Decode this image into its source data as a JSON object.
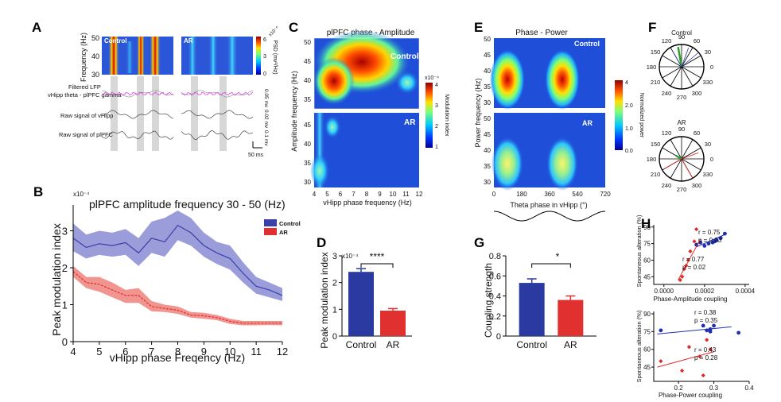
{
  "panels": {
    "A": {
      "label": "A",
      "control_label": "Control",
      "ar_label": "AR",
      "ylabel": "Frequency (Hz)",
      "yticks": [
        "50",
        "40",
        "30"
      ],
      "colorbar_label": "PSD (mv²/Hz)",
      "colorbar_exp": "x10⁻⁶",
      "colorbar_ticks": [
        "6",
        "3",
        "0"
      ],
      "row_filtered_1": "Filtered LFP",
      "row_filtered_2": "vHipp theta - plPFC gamma",
      "row_raw_vhipp": "Raw signal of vHipp",
      "row_raw_plpfc": "Raw signal of plPFC",
      "scale_1": "0.05 mv",
      "scale_2": "0.02 mv",
      "scale_3": "0.1 mv",
      "time_scale": "50 ms"
    },
    "B": {
      "label": "B",
      "title": "plPFC amplitude frequency 30 - 50 (Hz)",
      "xlabel": "vHipp phase Freqency (Hz)",
      "ylabel": "Peak modulation index",
      "exp": "x10⁻⁴",
      "xticks": [
        "4",
        "5",
        "6",
        "7",
        "8",
        "9",
        "10",
        "11",
        "12"
      ],
      "yticks": [
        "0",
        "1",
        "2",
        "3"
      ],
      "legend": [
        "Control",
        "AR"
      ],
      "colors": {
        "control": "#3b3fa8",
        "control_band": "#8f92d6",
        "ar": "#e0302f",
        "ar_band": "#f08a84"
      }
    },
    "C": {
      "label": "C",
      "title": "plPFC phase - Amplitude",
      "xlabel": "vHipp phase frequency (Hz)",
      "ylabel": "Amplitude frequency (Hz)",
      "xticks": [
        "4",
        "5",
        "6",
        "7",
        "8",
        "9",
        "10",
        "11",
        "12"
      ],
      "yticks_top": [
        "50",
        "45",
        "40",
        "35"
      ],
      "yticks_bottom": [
        "45",
        "40",
        "35",
        "30"
      ],
      "control_label": "Control",
      "ar_label": "AR",
      "colorbar_label": "Modulation index",
      "colorbar_exp": "x10⁻⁴",
      "colorbar_ticks": [
        "4",
        "3",
        "2",
        "1"
      ]
    },
    "D": {
      "label": "D",
      "ylabel": "Peak modulation index",
      "exp": "x10⁻⁴",
      "yticks": [
        "0",
        "1",
        "2",
        "3"
      ],
      "significance": "****"
    },
    "E": {
      "label": "E",
      "title": "Phase - Power",
      "xlabel": "Theta phase in vHipp (°)",
      "ylabel": "Power frequency (Hz)",
      "xticks": [
        "0",
        "180",
        "360",
        "540",
        "720"
      ],
      "yticks_top": [
        "50",
        "45",
        "40",
        "35",
        "30"
      ],
      "yticks_bottom": [
        "50",
        "45",
        "40",
        "35",
        "30"
      ],
      "control_label": "Control",
      "ar_label": "AR",
      "colorbar_label": "Normalized power",
      "colorbar_ticks": [
        "4",
        "2.0",
        "1.0",
        "0.0"
      ]
    },
    "F": {
      "label": "F",
      "control_label": "Control",
      "ar_label": "AR",
      "angles": [
        "90",
        "60",
        "30",
        "0",
        "330",
        "300",
        "270",
        "240",
        "210",
        "180",
        "150",
        "120"
      ]
    },
    "G": {
      "label": "G",
      "ylabel": "Coupling strength",
      "yticks": [
        "0",
        "0.2",
        "0.4",
        "0.6",
        "0.8"
      ],
      "significance": "*"
    },
    "H": {
      "label": "H",
      "top": {
        "xlabel": "Phase-Amplitude coupling",
        "ylabel": "Spontaneous alteration (%)",
        "xticks": [
          "0.0000",
          "0.0002",
          "0.0004"
        ],
        "yticks": [
          "90",
          "75",
          "60",
          "45"
        ],
        "stat_control": "r = 0.75",
        "stat_control_p": "p = 0.03",
        "stat_ar": "r = 0.77",
        "stat_ar_p": "p = 0.02"
      },
      "bottom": {
        "xlabel": "Phase-Power coupling",
        "ylabel": "Spontaneous alteration (%)",
        "xticks": [
          "0.2",
          "0.3",
          "0.4"
        ],
        "yticks": [
          "90",
          "75",
          "60",
          "45"
        ],
        "stat_control": "r = 0.38",
        "stat_control_p": "p = 0.35",
        "stat_ar": "r = 0.43",
        "stat_ar_p": "p = 0.28"
      }
    }
  },
  "chart_data": [
    {
      "type": "area",
      "panel": "B",
      "title": "plPFC amplitude frequency 30 - 50 (Hz)",
      "xlabel": "vHipp phase Freqency (Hz)",
      "ylabel": "Peak modulation index",
      "xlim": [
        4,
        12
      ],
      "ylim": [
        0,
        3.7
      ],
      "x": [
        4,
        4.5,
        5,
        5.5,
        6,
        6.5,
        7,
        7.5,
        8,
        8.5,
        9,
        9.5,
        10,
        10.5,
        11,
        11.5,
        12
      ],
      "series": [
        {
          "name": "Control",
          "color": "#3b3fa8",
          "values": [
            2.8,
            2.55,
            2.65,
            2.6,
            2.68,
            2.4,
            2.8,
            2.7,
            3.15,
            2.95,
            2.6,
            2.4,
            2.25,
            1.85,
            1.5,
            1.4,
            1.25
          ],
          "lower": [
            2.45,
            2.25,
            2.35,
            2.3,
            2.35,
            2.05,
            2.4,
            2.3,
            2.75,
            2.6,
            2.3,
            2.1,
            1.95,
            1.6,
            1.3,
            1.2,
            1.1
          ],
          "upper": [
            3.2,
            2.9,
            3.0,
            2.95,
            3.05,
            2.8,
            3.25,
            3.35,
            3.55,
            3.35,
            2.95,
            2.7,
            2.6,
            2.15,
            1.75,
            1.6,
            1.45
          ]
        },
        {
          "name": "AR",
          "color": "#e0302f",
          "values": [
            1.9,
            1.6,
            1.55,
            1.4,
            1.25,
            1.25,
            0.95,
            0.9,
            0.85,
            0.72,
            0.7,
            0.65,
            0.55,
            0.5,
            0.5,
            0.5,
            0.5
          ],
          "lower": [
            1.75,
            1.45,
            1.35,
            1.2,
            1.05,
            1.05,
            0.82,
            0.8,
            0.75,
            0.65,
            0.62,
            0.58,
            0.48,
            0.44,
            0.44,
            0.45,
            0.44
          ],
          "upper": [
            2.05,
            1.75,
            1.75,
            1.6,
            1.4,
            1.45,
            1.1,
            1.0,
            0.95,
            0.8,
            0.78,
            0.72,
            0.62,
            0.56,
            0.56,
            0.56,
            0.56
          ]
        }
      ]
    },
    {
      "type": "bar",
      "panel": "D",
      "ylabel": "Peak modulation index",
      "categories": [
        "Control",
        "AR"
      ],
      "values": [
        2.4,
        0.95
      ],
      "errors": [
        0.12,
        0.08
      ],
      "colors": [
        "#2b3aa0",
        "#e0302f"
      ],
      "ylim": [
        0,
        3
      ]
    },
    {
      "type": "bar",
      "panel": "G",
      "ylabel": "Coupling strength",
      "categories": [
        "Control",
        "AR"
      ],
      "values": [
        0.53,
        0.36
      ],
      "errors": [
        0.04,
        0.04
      ],
      "colors": [
        "#2b3aa0",
        "#e0302f"
      ],
      "ylim": [
        0,
        0.8
      ]
    },
    {
      "type": "scatter",
      "panel": "H-top",
      "xlabel": "Phase-Amplitude coupling",
      "ylabel": "Spontaneous alteration (%)",
      "xlim": [
        -5e-05,
        0.00042
      ],
      "ylim": [
        38,
        92
      ],
      "series": [
        {
          "name": "Control",
          "color": "#1f2fb0",
          "x": [
            0.00016,
            0.00018,
            0.0002,
            0.00022,
            0.00024,
            0.00025,
            0.00026,
            0.00028,
            0.0003
          ],
          "y": [
            74,
            76,
            73,
            75,
            76,
            77,
            78,
            80,
            84
          ],
          "fit": [
            [
              0.00016,
              72
            ],
            [
              0.00031,
              84
            ]
          ]
        },
        {
          "name": "AR",
          "color": "#e02828",
          "x": [
            8e-05,
            9e-05,
            0.0001,
            0.00011,
            0.00012,
            0.00013,
            0.00015,
            0.00016
          ],
          "y": [
            42,
            45,
            52,
            55,
            60,
            68,
            77,
            88
          ],
          "fit": [
            [
              7e-05,
              42
            ],
            [
              0.00018,
              79
            ]
          ]
        }
      ]
    },
    {
      "type": "scatter",
      "panel": "H-bottom",
      "xlabel": "Phase-Power coupling",
      "ylabel": "Spontaneous alteration (%)",
      "xlim": [
        0.13,
        0.4
      ],
      "ylim": [
        33,
        92
      ],
      "series": [
        {
          "name": "Control",
          "color": "#1f2fb0",
          "x": [
            0.15,
            0.27,
            0.28,
            0.29,
            0.29,
            0.3,
            0.37
          ],
          "y": [
            76,
            80,
            76,
            75,
            77,
            80,
            74
          ],
          "fit": [
            [
              0.14,
              73
            ],
            [
              0.35,
              79
            ]
          ]
        },
        {
          "name": "AR",
          "color": "#e02828",
          "x": [
            0.15,
            0.21,
            0.23,
            0.26,
            0.27,
            0.28,
            0.29
          ],
          "y": [
            50,
            42,
            62,
            54,
            38,
            68,
            60
          ],
          "fit": [
            [
              0.14,
              45
            ],
            [
              0.3,
              58
            ]
          ]
        }
      ]
    },
    {
      "type": "heatmap",
      "panel": "E",
      "xlabel": "Theta phase in vHipp (°)",
      "ylabel": "Power frequency (Hz)",
      "xlim": [
        0,
        720
      ],
      "ylim": [
        28,
        50
      ],
      "control_peaks": [
        {
          "x": 90,
          "y": 37,
          "value": 4
        },
        {
          "x": 450,
          "y": 37,
          "value": 4
        }
      ],
      "ar_peaks": [
        {
          "x": 90,
          "y": 35,
          "value": 2.2
        },
        {
          "x": 450,
          "y": 35,
          "value": 2.2
        }
      ]
    },
    {
      "type": "heatmap",
      "panel": "C",
      "xlabel": "vHipp phase frequency (Hz)",
      "ylabel": "Amplitude frequency (Hz)",
      "xlim": [
        4,
        12
      ],
      "ylim": [
        30,
        50
      ],
      "control_peak": {
        "x": 6.8,
        "y": 45,
        "value": 4
      },
      "ar_peak": {
        "x": 4.2,
        "y": 33,
        "value": 2.2
      }
    }
  ]
}
